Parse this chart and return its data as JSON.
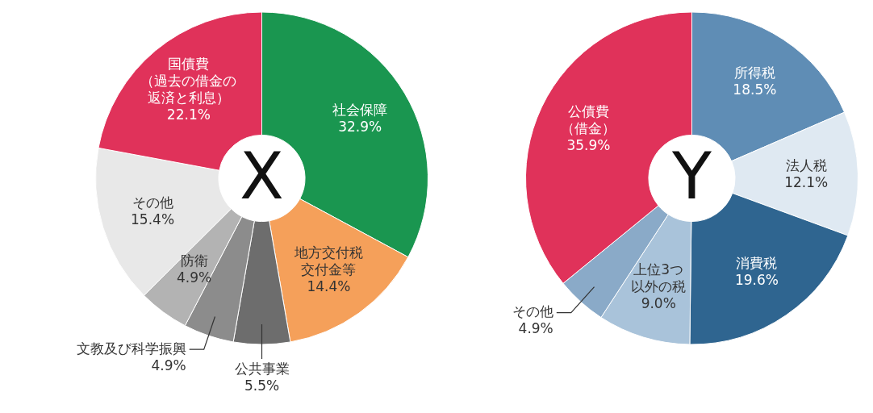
{
  "chart_data": [
    {
      "type": "donut",
      "title": "X",
      "categories": [
        "社会保障",
        "地方交付税交付金等",
        "公共事業",
        "文教及び科学振興",
        "防衛",
        "その他",
        "国債費（過去の借金の返済と利息）"
      ],
      "values": [
        32.9,
        14.4,
        5.5,
        4.9,
        4.9,
        15.4,
        22.1
      ],
      "value_labels": [
        "32.9%",
        "14.4%",
        "5.5%",
        "4.9%",
        "4.9%",
        "15.4%",
        "22.1%"
      ],
      "colors": [
        "#1a9650",
        "#f5a05a",
        "#6d6d6d",
        "#8c8c8c",
        "#b3b3b3",
        "#e8e8e8",
        "#e0325a"
      ],
      "legend": false
    },
    {
      "type": "donut",
      "title": "Y",
      "categories": [
        "所得税",
        "法人税",
        "消費税",
        "上位3つ以外の税",
        "その他",
        "公債費（借金）"
      ],
      "values": [
        18.5,
        12.1,
        19.6,
        9.0,
        4.9,
        35.9
      ],
      "value_labels": [
        "18.5%",
        "12.1%",
        "19.6%",
        "9.0%",
        "4.9%",
        "35.9%"
      ],
      "colors": [
        "#5f8db5",
        "#dfe9f2",
        "#2f6590",
        "#a9c3da",
        "#8aaac8",
        "#e0325a"
      ],
      "legend": false
    }
  ]
}
